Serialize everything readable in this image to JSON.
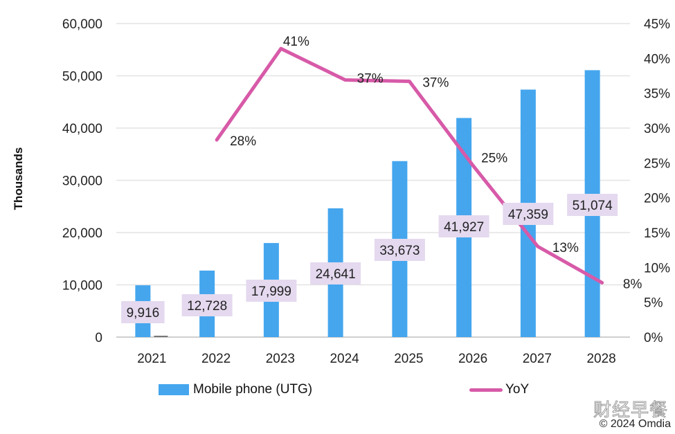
{
  "chart_data": {
    "type": "bar",
    "title": "",
    "categories": [
      "2021",
      "2022",
      "2023",
      "2024",
      "2025",
      "2026",
      "2027",
      "2028"
    ],
    "series": [
      {
        "name": "Mobile phone (UTG)",
        "type": "bar",
        "axis": "left",
        "color": "#45a6ee",
        "values": [
          9916,
          12728,
          17999,
          24641,
          33673,
          41927,
          47359,
          51074
        ],
        "labels": [
          "9,916",
          "12,728",
          "17,999",
          "24,641",
          "33,673",
          "41,927",
          "47,359",
          "51,074"
        ]
      },
      {
        "name": "YoY",
        "type": "line",
        "axis": "right",
        "color": "#d75aa8",
        "values": [
          null,
          28.3,
          41.4,
          36.9,
          36.7,
          24.5,
          13.0,
          7.8
        ],
        "labels": [
          null,
          "28%",
          "41%",
          "37%",
          "37%",
          "25%",
          "13%",
          "8%"
        ]
      }
    ],
    "ylabel": "Thousands",
    "ylim": [
      0,
      60000
    ],
    "yticks": [
      "0",
      "10,000",
      "20,000",
      "30,000",
      "40,000",
      "50,000",
      "60,000"
    ],
    "y2lim": [
      0,
      45
    ],
    "y2ticks": [
      "0%",
      "5%",
      "10%",
      "15%",
      "20%",
      "25%",
      "30%",
      "35%",
      "40%",
      "45%"
    ],
    "grid": true,
    "legend_position": "bottom"
  },
  "legend": {
    "bar_label": "Mobile phone (UTG)",
    "line_label": "YoY"
  },
  "watermark": "财经早餐",
  "copyright": "© 2024 Omdia"
}
